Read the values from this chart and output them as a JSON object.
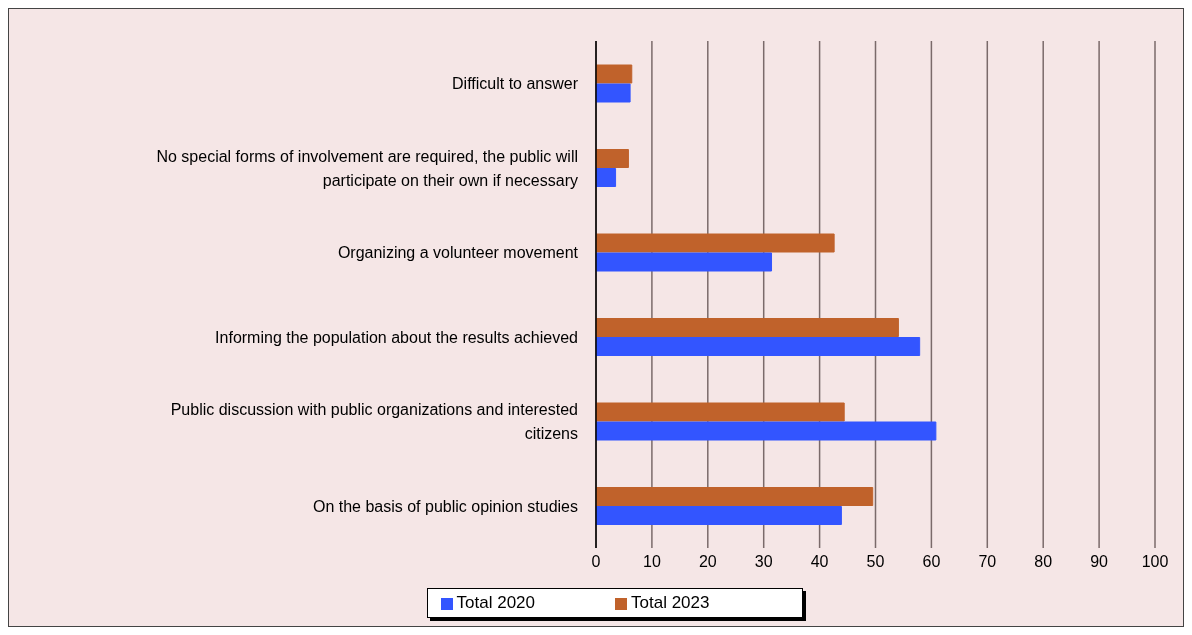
{
  "chart_data": {
    "type": "bar",
    "orientation": "horizontal",
    "categories": [
      "Difficult to answer",
      "No special forms of involvement are required, the public will participate on their own if necessary",
      "Organizing a volunteer movement",
      "Informing the population about the results achieved",
      "Public discussion with public organizations and interested citizens",
      "On the basis of public opinion studies"
    ],
    "series": [
      {
        "name": "Total 2023",
        "color": "#c0622b",
        "values": [
          6.4,
          5.8,
          42.6,
          54.1,
          44.4,
          49.5
        ]
      },
      {
        "name": "Total 2020",
        "color": "#3355ff",
        "values": [
          6.1,
          3.5,
          31.4,
          57.9,
          60.8,
          43.9
        ]
      }
    ],
    "xlim": [
      0,
      100
    ],
    "xticks": [
      0,
      10,
      20,
      30,
      40,
      50,
      60,
      70,
      80,
      90,
      100
    ],
    "grid": "x",
    "legend": "bottom"
  }
}
